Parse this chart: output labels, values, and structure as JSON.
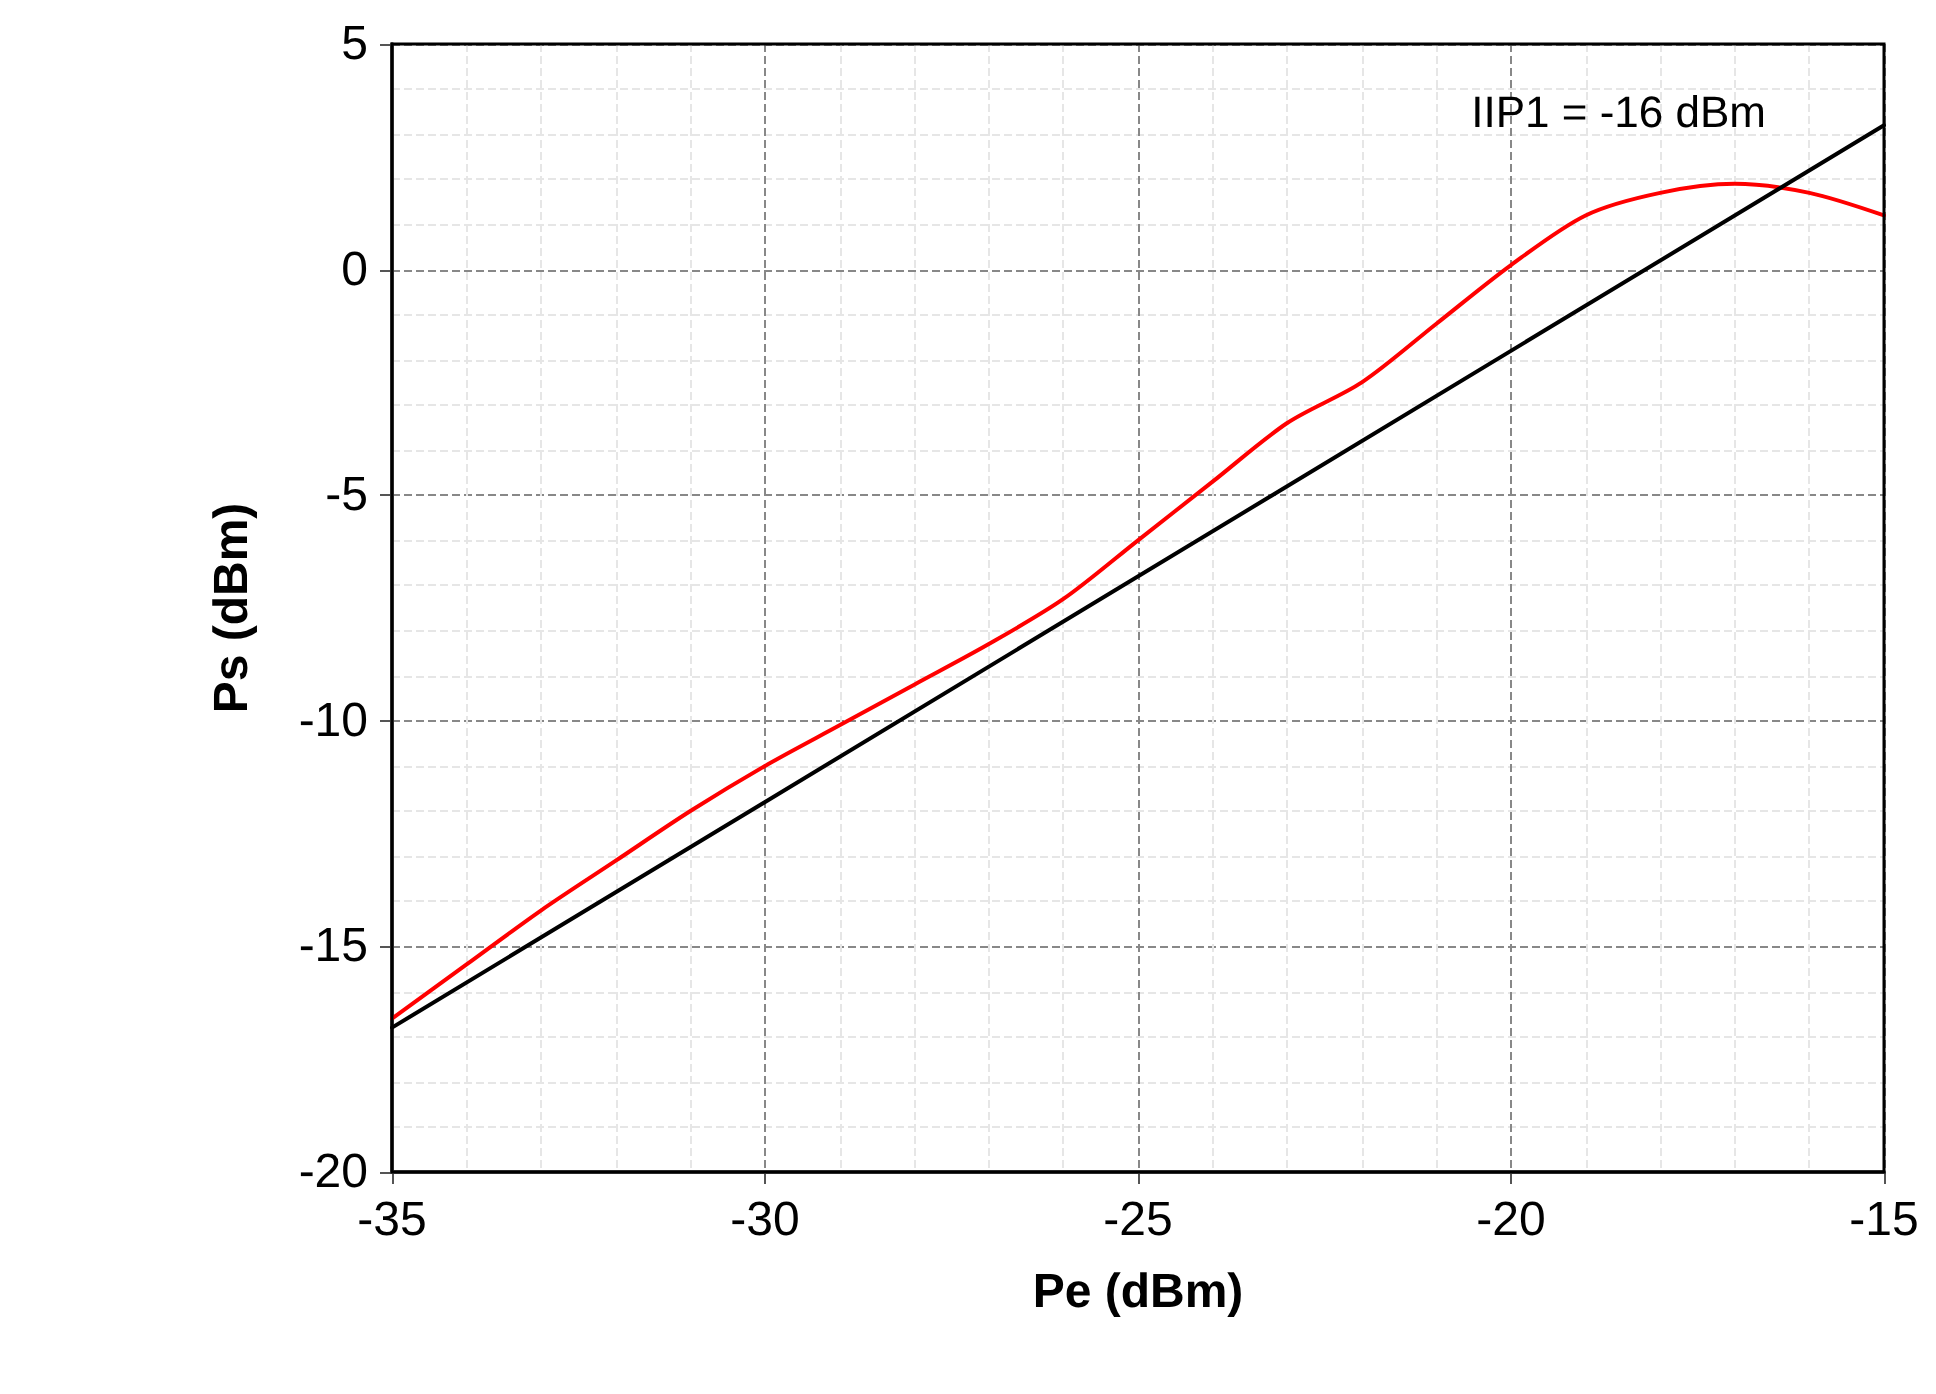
{
  "chart_data": {
    "type": "line",
    "xlabel": "Pe (dBm)",
    "ylabel": "Ps (dBm)",
    "annotations": [
      "IIP1 = -16 dBm"
    ],
    "x": [
      -35,
      -34,
      -33,
      -32,
      -31,
      -30,
      -29,
      -28,
      -27,
      -26,
      -25,
      -24,
      -23,
      -22,
      -21,
      -20,
      -19,
      -18,
      -17,
      -16,
      -15
    ],
    "series": [
      {
        "color": "#ff0000",
        "values": [
          -16.6,
          -15.4,
          -14.2,
          -13.1,
          -12.0,
          -11.0,
          -10.1,
          -9.2,
          -8.3,
          -7.3,
          -6.0,
          -4.7,
          -3.4,
          -2.5,
          -1.2,
          0.1,
          1.2,
          1.7,
          1.9,
          1.7,
          1.2
        ]
      },
      {
        "color": "#000000",
        "x": [
          -35,
          -15
        ],
        "values": [
          -16.8,
          3.2
        ]
      }
    ],
    "xlim": [
      -35,
      -15
    ],
    "xticks": [
      -35,
      -30,
      -25,
      -20,
      -15
    ],
    "ylim": [
      -20,
      5
    ],
    "yticks": [
      -20,
      -15,
      -10,
      -5,
      0,
      5
    ],
    "grid": true,
    "marker": "none",
    "line_style": "solid"
  }
}
